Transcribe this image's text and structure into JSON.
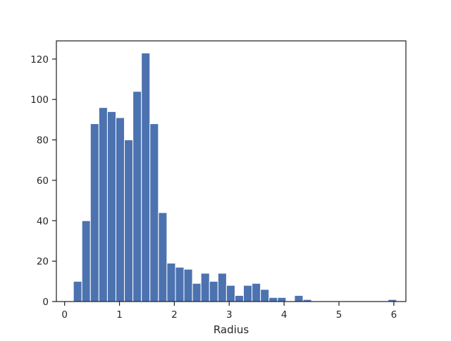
{
  "chart_data": {
    "type": "bar",
    "title": "",
    "xlabel": "Radius",
    "ylabel": "",
    "xlim": [
      -0.15,
      6.22
    ],
    "ylim": [
      0,
      129
    ],
    "x_ticks": [
      0,
      1,
      2,
      3,
      4,
      5,
      6
    ],
    "y_ticks": [
      0,
      20,
      40,
      60,
      80,
      100,
      120
    ],
    "bin_width": 0.155,
    "bin_edges_start": 0.16,
    "values": [
      10,
      40,
      88,
      96,
      94,
      91,
      80,
      104,
      123,
      88,
      44,
      19,
      17,
      16,
      9,
      14,
      10,
      14,
      8,
      3,
      8,
      9,
      6,
      2,
      2,
      0,
      3,
      1,
      0,
      0,
      0,
      0,
      0,
      0,
      0,
      0,
      0,
      1
    ],
    "bar_color": "#4c72b0",
    "grid": false,
    "legend": "none"
  }
}
